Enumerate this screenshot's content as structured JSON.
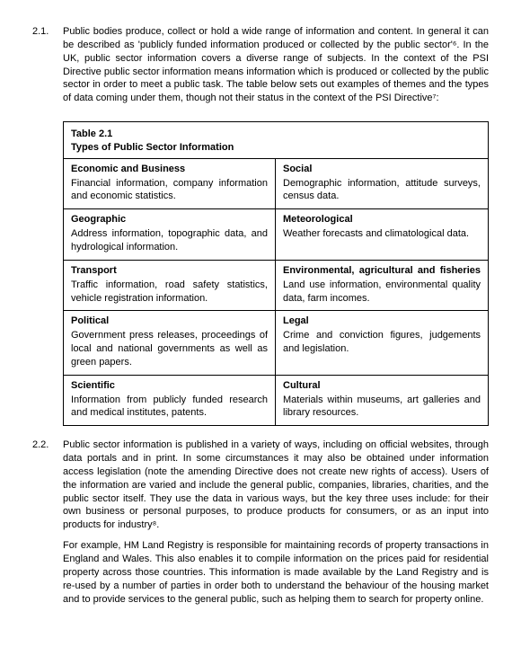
{
  "sections": [
    {
      "num": "2.1.",
      "paras": [
        "Public bodies produce, collect or hold a wide range of information and content. In general it can be described as 'publicly funded information produced or collected by the public sector'⁶. In the UK, public sector information covers a diverse range of subjects. In the context of the PSI Directive public sector information means information which is produced or collected by the public sector in order to meet a public task.  The table below sets out examples of themes and the types of data coming under them, though not their status in the context of the PSI Directive⁷:"
      ]
    },
    {
      "num": "2.2.",
      "paras": [
        "Public sector information is published in a variety of ways, including on official websites, through data portals and in print. In some circumstances it may also be obtained under information access legislation (note the amending Directive does not create new rights of access). Users of the information are varied and include the general public, companies, libraries, charities, and the public sector itself. They use the data in various ways, but the key three uses include: for their own business or personal purposes, to produce products for consumers, or as an input into products for industry⁸.",
        "For example, HM Land Registry is responsible for maintaining records of property transactions in England and Wales.  This also enables it to compile information on the prices paid for residential property across those countries.  This information is made available by the Land Registry and is re-used by a number of parties in order both to understand the behaviour of the housing market and to provide services to the general public, such as helping them to search for property online."
      ]
    }
  ],
  "table": {
    "title_line1": "Table 2.1",
    "title_line2": "Types of Public Sector Information",
    "rows": [
      {
        "l_head": "Economic and Business",
        "l_head_j": false,
        "l_body": "Financial information, company information and economic statistics.",
        "r_head": "Social",
        "r_head_j": false,
        "r_body": "Demographic information, attitude surveys, census data."
      },
      {
        "l_head": "Geographic",
        "l_head_j": false,
        "l_body": "Address information, topographic data, and hydrological information.",
        "r_head": "Meteorological",
        "r_head_j": false,
        "r_body": "Weather forecasts and climatological data."
      },
      {
        "l_head": "Transport",
        "l_head_j": false,
        "l_body": "Traffic information, road safety statistics, vehicle registration information.",
        "r_head": "Environmental, agricultural and fisheries",
        "r_head_j": true,
        "r_body": "Land use information, environmental quality data, farm incomes."
      },
      {
        "l_head": "Political",
        "l_head_j": false,
        "l_body": "Government press releases, proceedings of local and national governments as well as green papers.",
        "r_head": "Legal",
        "r_head_j": false,
        "r_body": "Crime and conviction figures, judgements and legislation."
      },
      {
        "l_head": "Scientific",
        "l_head_j": false,
        "l_body": "Information from publicly funded research and medical institutes, patents.",
        "r_head": "Cultural",
        "r_head_j": false,
        "r_body": "Materials within museums, art galleries and library resources."
      }
    ]
  }
}
